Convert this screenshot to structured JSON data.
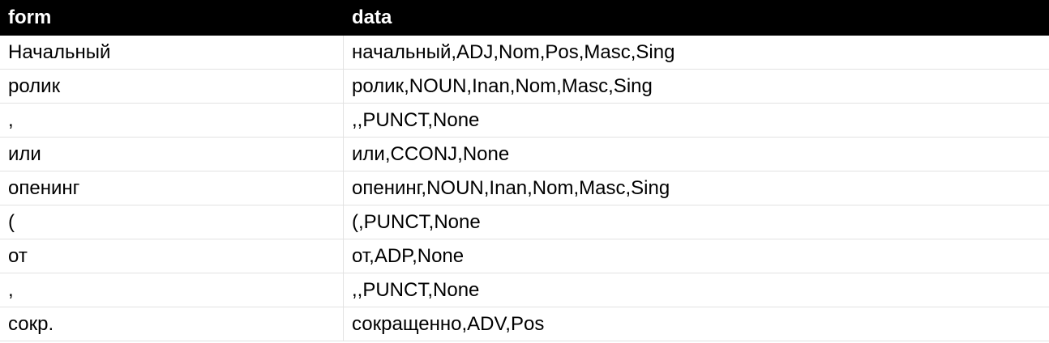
{
  "table": {
    "columns": [
      "form",
      "data"
    ],
    "rows": [
      {
        "form": "Начальный",
        "data": "начальный,ADJ,Nom,Pos,Masc,Sing"
      },
      {
        "form": "ролик",
        "data": "ролик,NOUN,Inan,Nom,Masc,Sing"
      },
      {
        "form": ",",
        "data": ",,PUNCT,None"
      },
      {
        "form": "или",
        "data": "или,CCONJ,None"
      },
      {
        "form": "опенинг",
        "data": "опенинг,NOUN,Inan,Nom,Masc,Sing"
      },
      {
        "form": "(",
        "data": "(,PUNCT,None"
      },
      {
        "form": "от",
        "data": "от,ADP,None"
      },
      {
        "form": ",",
        "data": ",,PUNCT,None"
      },
      {
        "form": "сокр.",
        "data": "сокращенно,ADV,Pos"
      }
    ]
  },
  "colors": {
    "header_bg": "#000000",
    "header_text": "#ffffff",
    "grid_line": "#e2e2e2"
  }
}
